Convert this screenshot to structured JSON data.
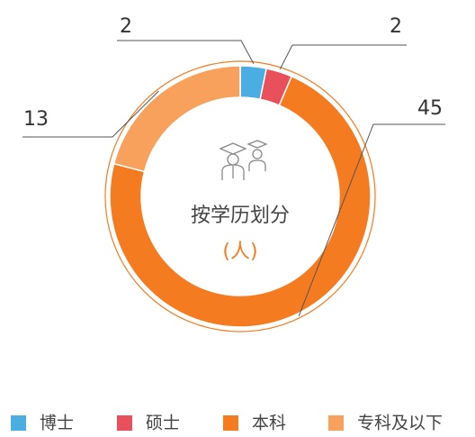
{
  "chart_data": {
    "type": "pie",
    "donut": true,
    "title": "按学历划分",
    "unit": "(人)",
    "categories": [
      "博士",
      "硕士",
      "本科",
      "专科及以下"
    ],
    "values": [
      2,
      2,
      45,
      13
    ],
    "colors": [
      "#4aaee2",
      "#e8505b",
      "#f47b20",
      "#f7a15c"
    ]
  }
}
